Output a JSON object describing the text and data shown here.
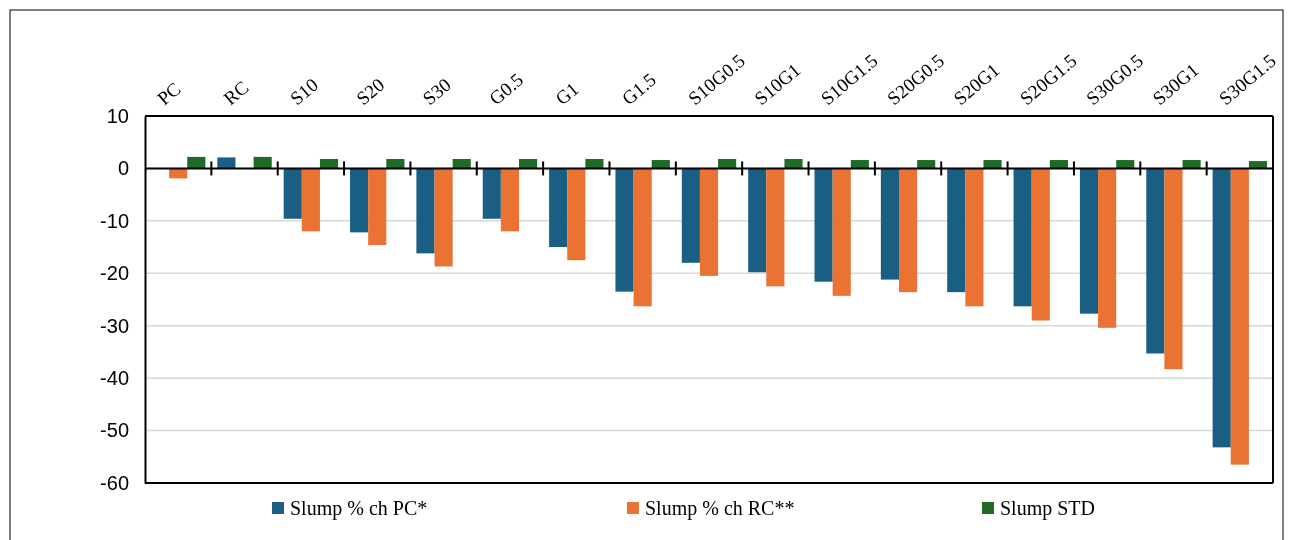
{
  "chart_data": {
    "type": "bar",
    "categories": [
      "PC",
      "RC",
      "S10",
      "S20",
      "S30",
      "G0.5",
      "G1",
      "G1.5",
      "S10G0.5",
      "S10G1",
      "S10G1.5",
      "S20G0.5",
      "S20G1",
      "S20G1.5",
      "S30G0.5",
      "S30G1",
      "S30G1.5"
    ],
    "series": [
      {
        "name": "Slump % ch PC*",
        "color": "#1a5f83",
        "values": [
          null,
          2.1,
          -9.6,
          -12.2,
          -16.2,
          -9.6,
          -15,
          -23.5,
          -18,
          -19.8,
          -21.6,
          -21.2,
          -23.6,
          -26.3,
          -27.7,
          -35.3,
          -53.2
        ]
      },
      {
        "name": "Slump % ch RC**",
        "color": "#ea7233",
        "values": [
          -1.9,
          null,
          -12,
          -14.6,
          -18.7,
          -12,
          -17.5,
          -26.3,
          -20.5,
          -22.5,
          -24.3,
          -23.6,
          -26.3,
          -29,
          -30.4,
          -38.3,
          -56.5
        ]
      },
      {
        "name": "Slump STD",
        "color": "#1e6b25",
        "values": [
          2.2,
          2.2,
          1.8,
          1.8,
          1.8,
          1.8,
          1.8,
          1.6,
          1.8,
          1.8,
          1.6,
          1.6,
          1.6,
          1.6,
          1.6,
          1.6,
          1.4
        ]
      }
    ],
    "ylim": [
      -60,
      10
    ],
    "yticks": [
      -60,
      -50,
      -40,
      -30,
      -20,
      -10,
      0,
      10
    ],
    "grid": "y",
    "legend": "bottom"
  }
}
